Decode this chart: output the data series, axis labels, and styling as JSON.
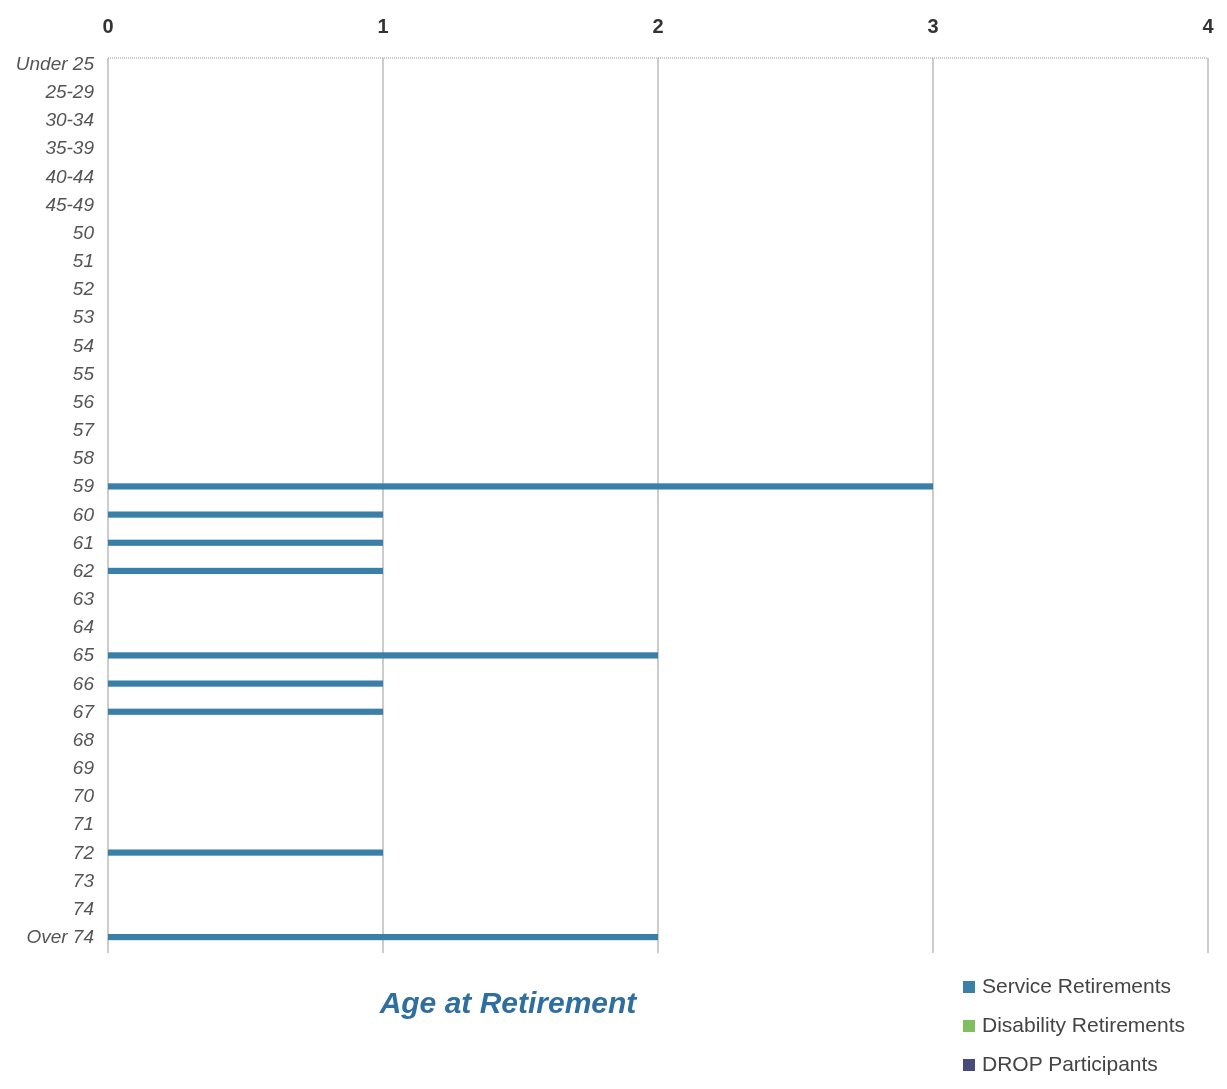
{
  "chart_data": {
    "type": "bar",
    "orientation": "horizontal",
    "stacked": true,
    "title": "Age at Retirement",
    "categories": [
      "Under 25",
      "25-29",
      "30-34",
      "35-39",
      "40-44",
      "45-49",
      "50",
      "51",
      "52",
      "53",
      "54",
      "55",
      "56",
      "57",
      "58",
      "59",
      "60",
      "61",
      "62",
      "63",
      "64",
      "65",
      "66",
      "67",
      "68",
      "69",
      "70",
      "71",
      "72",
      "73",
      "74",
      "Over 74"
    ],
    "series": [
      {
        "name": "Service Retirements",
        "color": "#3a7fa8",
        "values": [
          0,
          0,
          0,
          0,
          0,
          0,
          0,
          0,
          0,
          0,
          0,
          0,
          0,
          0,
          0,
          3,
          1,
          1,
          1,
          0,
          0,
          2,
          1,
          1,
          0,
          0,
          0,
          0,
          1,
          0,
          0,
          2
        ]
      },
      {
        "name": "Disability Retirements",
        "color": "#7fbf5f",
        "values": [
          0,
          0,
          0,
          0,
          0,
          0,
          0,
          0,
          0,
          0,
          0,
          0,
          0,
          0,
          0,
          0,
          0,
          0,
          0,
          0,
          0,
          0,
          0,
          0,
          0,
          0,
          0,
          0,
          0,
          0,
          0,
          0
        ]
      },
      {
        "name": "DROP Participants",
        "color": "#4a4a7a",
        "values": [
          0,
          0,
          0,
          0,
          0,
          0,
          0,
          0,
          0,
          0,
          0,
          0,
          0,
          0,
          0,
          0,
          0,
          0,
          0,
          0,
          0,
          0,
          0,
          0,
          0,
          0,
          0,
          0,
          0,
          0,
          0,
          0
        ]
      }
    ],
    "xlim": [
      0,
      4
    ],
    "xticks": [
      0,
      1,
      2,
      3,
      4
    ],
    "grid": "x",
    "legend": "bottom right"
  }
}
